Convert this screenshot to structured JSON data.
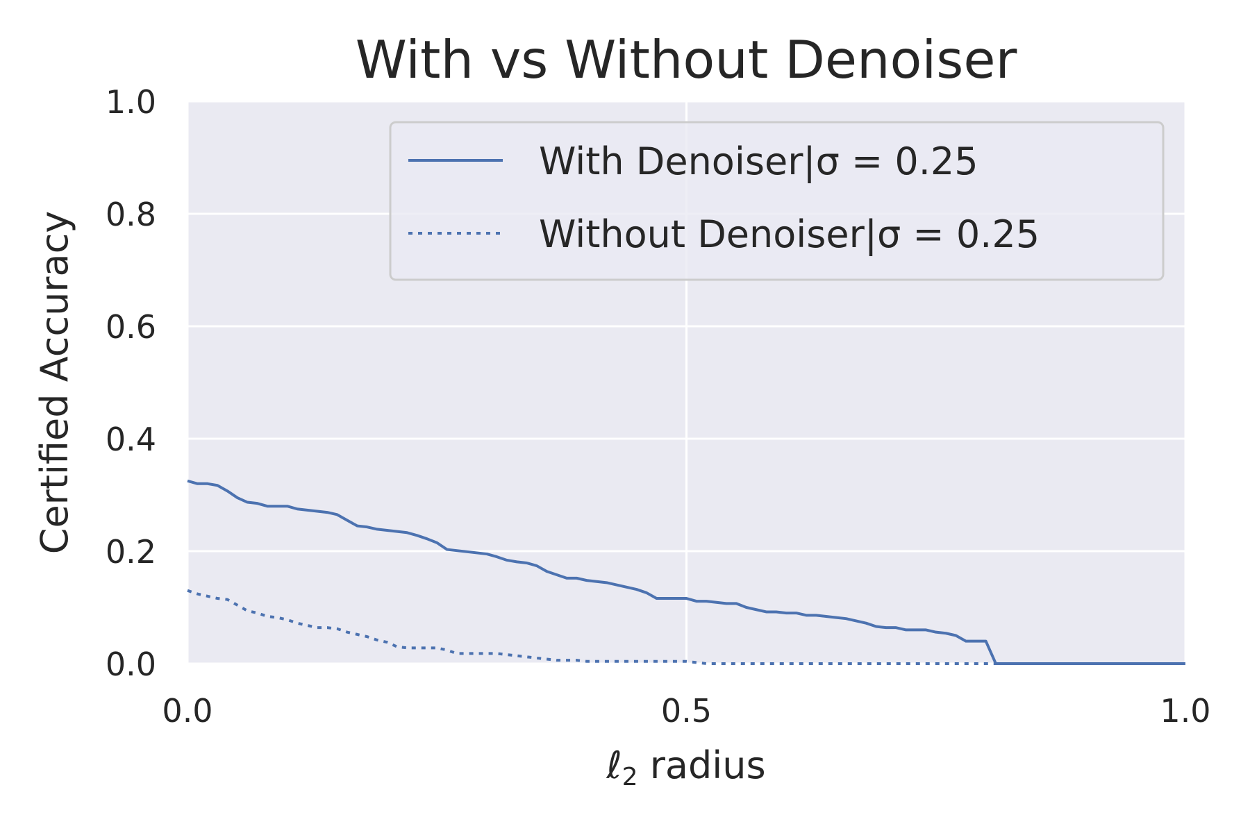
{
  "chart_data": {
    "type": "line",
    "title": "With vs Without Denoiser",
    "xlabel": "radius",
    "xlabel_math": {
      "symbol": "ℓ",
      "subscript": "2"
    },
    "ylabel": "Certified Accuracy",
    "xlim": [
      0.0,
      1.0
    ],
    "ylim": [
      0.0,
      1.0
    ],
    "x_ticks": [
      0.0,
      0.5,
      1.0
    ],
    "x_tick_labels": [
      "0.0",
      "0.5",
      "1.0"
    ],
    "y_ticks": [
      0.0,
      0.2,
      0.4,
      0.6,
      0.8,
      1.0
    ],
    "y_tick_labels": [
      "0.0",
      "0.2",
      "0.4",
      "0.6",
      "0.8",
      "1.0"
    ],
    "grid": true,
    "legend_position": "top-right",
    "colors": {
      "background": "#eaeaf2",
      "grid": "#ffffff",
      "series": "#4c72b0",
      "text": "#262626"
    },
    "series": [
      {
        "name": "With Denoiser|σ = 0.25",
        "style": "solid",
        "points": [
          [
            0.0,
            0.325
          ],
          [
            0.01,
            0.32
          ],
          [
            0.02,
            0.32
          ],
          [
            0.03,
            0.317
          ],
          [
            0.04,
            0.307
          ],
          [
            0.05,
            0.295
          ],
          [
            0.06,
            0.287
          ],
          [
            0.07,
            0.285
          ],
          [
            0.08,
            0.28
          ],
          [
            0.09,
            0.28
          ],
          [
            0.1,
            0.28
          ],
          [
            0.11,
            0.275
          ],
          [
            0.12,
            0.273
          ],
          [
            0.13,
            0.271
          ],
          [
            0.14,
            0.269
          ],
          [
            0.15,
            0.265
          ],
          [
            0.16,
            0.255
          ],
          [
            0.17,
            0.245
          ],
          [
            0.18,
            0.243
          ],
          [
            0.19,
            0.239
          ],
          [
            0.2,
            0.237
          ],
          [
            0.21,
            0.235
          ],
          [
            0.22,
            0.233
          ],
          [
            0.23,
            0.228
          ],
          [
            0.24,
            0.222
          ],
          [
            0.25,
            0.215
          ],
          [
            0.26,
            0.203
          ],
          [
            0.27,
            0.201
          ],
          [
            0.28,
            0.199
          ],
          [
            0.29,
            0.197
          ],
          [
            0.3,
            0.195
          ],
          [
            0.31,
            0.19
          ],
          [
            0.32,
            0.184
          ],
          [
            0.33,
            0.181
          ],
          [
            0.34,
            0.179
          ],
          [
            0.35,
            0.174
          ],
          [
            0.36,
            0.164
          ],
          [
            0.37,
            0.158
          ],
          [
            0.38,
            0.152
          ],
          [
            0.39,
            0.152
          ],
          [
            0.4,
            0.148
          ],
          [
            0.41,
            0.146
          ],
          [
            0.42,
            0.144
          ],
          [
            0.43,
            0.14
          ],
          [
            0.44,
            0.136
          ],
          [
            0.45,
            0.132
          ],
          [
            0.46,
            0.126
          ],
          [
            0.47,
            0.116
          ],
          [
            0.48,
            0.116
          ],
          [
            0.49,
            0.116
          ],
          [
            0.5,
            0.116
          ],
          [
            0.51,
            0.111
          ],
          [
            0.52,
            0.111
          ],
          [
            0.53,
            0.109
          ],
          [
            0.54,
            0.107
          ],
          [
            0.55,
            0.107
          ],
          [
            0.56,
            0.1
          ],
          [
            0.57,
            0.096
          ],
          [
            0.58,
            0.092
          ],
          [
            0.59,
            0.092
          ],
          [
            0.6,
            0.09
          ],
          [
            0.61,
            0.09
          ],
          [
            0.62,
            0.086
          ],
          [
            0.63,
            0.086
          ],
          [
            0.64,
            0.084
          ],
          [
            0.65,
            0.082
          ],
          [
            0.66,
            0.08
          ],
          [
            0.67,
            0.076
          ],
          [
            0.68,
            0.072
          ],
          [
            0.69,
            0.066
          ],
          [
            0.7,
            0.064
          ],
          [
            0.71,
            0.064
          ],
          [
            0.72,
            0.06
          ],
          [
            0.73,
            0.06
          ],
          [
            0.74,
            0.06
          ],
          [
            0.75,
            0.056
          ],
          [
            0.76,
            0.054
          ],
          [
            0.77,
            0.05
          ],
          [
            0.78,
            0.04
          ],
          [
            0.79,
            0.04
          ],
          [
            0.8,
            0.04
          ],
          [
            0.81,
            0.0
          ],
          [
            0.9,
            0.0
          ],
          [
            1.0,
            0.0
          ]
        ]
      },
      {
        "name": "Without Denoiser|σ = 0.25",
        "style": "dotted",
        "points": [
          [
            0.0,
            0.13
          ],
          [
            0.01,
            0.124
          ],
          [
            0.02,
            0.12
          ],
          [
            0.03,
            0.116
          ],
          [
            0.04,
            0.114
          ],
          [
            0.05,
            0.104
          ],
          [
            0.06,
            0.094
          ],
          [
            0.07,
            0.09
          ],
          [
            0.08,
            0.084
          ],
          [
            0.09,
            0.082
          ],
          [
            0.1,
            0.078
          ],
          [
            0.11,
            0.072
          ],
          [
            0.12,
            0.068
          ],
          [
            0.13,
            0.064
          ],
          [
            0.14,
            0.064
          ],
          [
            0.15,
            0.062
          ],
          [
            0.16,
            0.056
          ],
          [
            0.17,
            0.052
          ],
          [
            0.18,
            0.048
          ],
          [
            0.19,
            0.042
          ],
          [
            0.2,
            0.038
          ],
          [
            0.21,
            0.03
          ],
          [
            0.22,
            0.028
          ],
          [
            0.23,
            0.028
          ],
          [
            0.24,
            0.028
          ],
          [
            0.25,
            0.028
          ],
          [
            0.26,
            0.024
          ],
          [
            0.27,
            0.018
          ],
          [
            0.28,
            0.018
          ],
          [
            0.29,
            0.018
          ],
          [
            0.3,
            0.018
          ],
          [
            0.31,
            0.018
          ],
          [
            0.32,
            0.016
          ],
          [
            0.33,
            0.014
          ],
          [
            0.34,
            0.012
          ],
          [
            0.35,
            0.01
          ],
          [
            0.36,
            0.008
          ],
          [
            0.37,
            0.006
          ],
          [
            0.38,
            0.006
          ],
          [
            0.39,
            0.006
          ],
          [
            0.4,
            0.004
          ],
          [
            0.41,
            0.004
          ],
          [
            0.45,
            0.004
          ],
          [
            0.5,
            0.004
          ],
          [
            0.51,
            0.002
          ],
          [
            0.52,
            0.0
          ],
          [
            0.6,
            0.0
          ],
          [
            0.7,
            0.0
          ],
          [
            0.8,
            0.0
          ],
          [
            0.9,
            0.0
          ],
          [
            1.0,
            0.0
          ]
        ]
      }
    ]
  }
}
